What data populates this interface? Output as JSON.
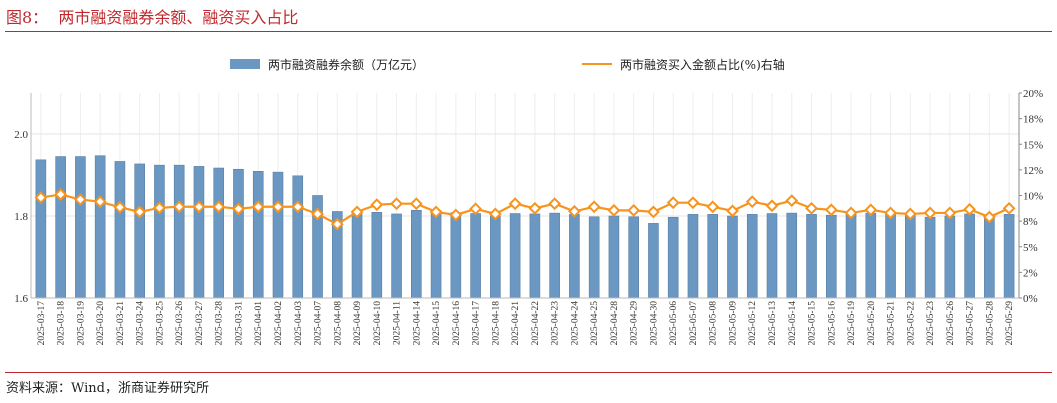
{
  "title": "图8：  两市融资融券余额、融资买入占比",
  "source": "资料来源：Wind，浙商证券研究所",
  "colors": {
    "bar": "#6a98c2",
    "bar_edge": "#5a7fa3",
    "line": "#f7941d",
    "title": "#c0282d"
  },
  "chart_data": {
    "type": "bar+line",
    "title": "",
    "legend_position": "top",
    "grid": true,
    "categories": [
      "2025-03-17",
      "2025-03-18",
      "2025-03-19",
      "2025-03-20",
      "2025-03-21",
      "2025-03-24",
      "2025-03-25",
      "2025-03-26",
      "2025-03-27",
      "2025-03-28",
      "2025-03-31",
      "2025-04-01",
      "2025-04-02",
      "2025-04-03",
      "2025-04-07",
      "2025-04-08",
      "2025-04-09",
      "2025-04-10",
      "2025-04-11",
      "2025-04-14",
      "2025-04-15",
      "2025-04-16",
      "2025-04-17",
      "2025-04-18",
      "2025-04-21",
      "2025-04-22",
      "2025-04-23",
      "2025-04-24",
      "2025-04-25",
      "2025-04-28",
      "2025-04-29",
      "2025-04-30",
      "2025-05-06",
      "2025-05-07",
      "2025-05-08",
      "2025-05-09",
      "2025-05-12",
      "2025-05-13",
      "2025-05-14",
      "2025-05-15",
      "2025-05-16",
      "2025-05-19",
      "2025-05-20",
      "2025-05-21",
      "2025-05-22",
      "2025-05-23",
      "2025-05-26",
      "2025-05-27",
      "2025-05-28",
      "2025-05-29"
    ],
    "series": [
      {
        "name": "两市融资融券余额（万亿元）",
        "type": "bar",
        "axis": "left",
        "values": [
          1.937,
          1.945,
          1.945,
          1.947,
          1.933,
          1.927,
          1.924,
          1.924,
          1.921,
          1.917,
          1.914,
          1.909,
          1.907,
          1.898,
          1.85,
          1.811,
          1.81,
          1.809,
          1.805,
          1.814,
          1.813,
          1.808,
          1.806,
          1.8,
          1.806,
          1.805,
          1.807,
          1.804,
          1.798,
          1.8,
          1.798,
          1.782,
          1.797,
          1.804,
          1.804,
          1.8,
          1.804,
          1.806,
          1.807,
          1.804,
          1.802,
          1.806,
          1.807,
          1.806,
          1.803,
          1.797,
          1.8,
          1.805,
          1.802,
          1.804
        ]
      },
      {
        "name": "两市融资买入金额占比(%)右轴",
        "type": "line",
        "axis": "right",
        "values": [
          9.8,
          10.1,
          9.6,
          9.4,
          8.85,
          8.4,
          8.8,
          8.9,
          8.9,
          8.9,
          8.7,
          8.9,
          8.9,
          8.9,
          8.2,
          7.2,
          8.4,
          9.1,
          9.2,
          9.2,
          8.4,
          8.1,
          8.7,
          8.2,
          9.2,
          8.75,
          9.2,
          8.45,
          8.9,
          8.55,
          8.55,
          8.4,
          9.3,
          9.3,
          8.9,
          8.5,
          9.4,
          9.0,
          9.5,
          8.75,
          8.6,
          8.3,
          8.6,
          8.3,
          8.2,
          8.3,
          8.3,
          8.65,
          7.9,
          8.75
        ]
      }
    ],
    "left_axis": {
      "ylim": [
        1.6,
        2.1
      ],
      "ticks": [
        "1.6",
        "1.8",
        "2.0"
      ]
    },
    "right_axis": {
      "ylim": [
        0,
        20
      ],
      "ticks": [
        "0%",
        "2%",
        "5%",
        "8%",
        "10%",
        "12%",
        "15%",
        "18%",
        "20%"
      ]
    }
  }
}
